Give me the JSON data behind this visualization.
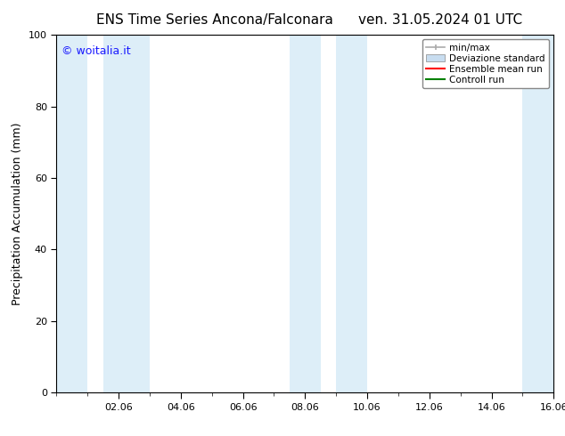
{
  "title_left": "ENS Time Series Ancona/Falconara",
  "title_right": "ven. 31.05.2024 01 UTC",
  "ylabel": "Precipitation Accumulation (mm)",
  "watermark": "© woitalia.it",
  "ylim": [
    0,
    100
  ],
  "x_tick_labels": [
    "02.06",
    "04.06",
    "06.06",
    "08.06",
    "10.06",
    "12.06",
    "14.06",
    "16.06"
  ],
  "x_tick_positions": [
    2,
    4,
    6,
    8,
    10,
    12,
    14,
    16
  ],
  "xlim": [
    0,
    16
  ],
  "shaded_bands": [
    {
      "x_start": 0.0,
      "x_end": 1.0,
      "color": "#ddeef8"
    },
    {
      "x_start": 1.5,
      "x_end": 3.0,
      "color": "#ddeef8"
    },
    {
      "x_start": 7.5,
      "x_end": 8.5,
      "color": "#ddeef8"
    },
    {
      "x_start": 9.0,
      "x_end": 10.0,
      "color": "#ddeef8"
    },
    {
      "x_start": 15.0,
      "x_end": 16.0,
      "color": "#ddeef8"
    }
  ],
  "legend_entries": [
    {
      "label": "min/max",
      "color": "#aaaaaa",
      "type": "errorbar"
    },
    {
      "label": "Deviazione standard",
      "color": "#c8ddf0",
      "type": "patch"
    },
    {
      "label": "Ensemble mean run",
      "color": "#ff0000",
      "type": "line"
    },
    {
      "label": "Controll run",
      "color": "#008000",
      "type": "line"
    }
  ],
  "title_fontsize": 11,
  "axis_label_fontsize": 9,
  "tick_fontsize": 8,
  "watermark_color": "#1a1aff",
  "background_color": "#ffffff",
  "plot_bg_color": "#ffffff",
  "border_color": "#000000",
  "y_ticks": [
    0,
    20,
    40,
    60,
    80,
    100
  ]
}
